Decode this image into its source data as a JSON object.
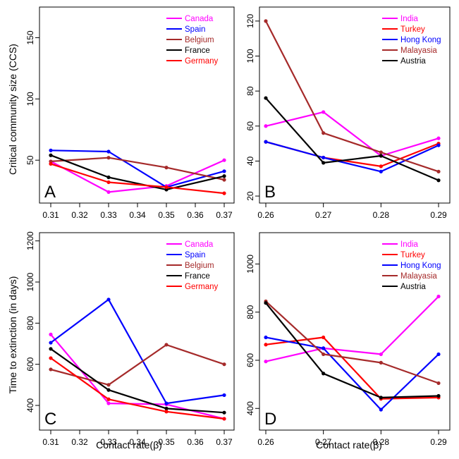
{
  "colors": {
    "magenta": "#ff00ff",
    "blue": "#0000ff",
    "brown": "#a52a2a",
    "black": "#000000",
    "red": "#ff0000"
  },
  "labels": {
    "ylabel_top": "Critical community size (CCS)",
    "ylabel_bottom": "Time to extinction (in days)",
    "xlabel": "Contact rate(β)"
  },
  "chart_data": [
    {
      "id": "A",
      "letter": "A",
      "type": "line",
      "x": [
        0.31,
        0.33,
        0.35,
        0.37
      ],
      "xticks": [
        "0.31",
        "0.32",
        "0.33",
        "0.34",
        "0.35",
        "0.36",
        "0.37"
      ],
      "xlim": [
        0.31,
        0.37
      ],
      "ylim": [
        15,
        175
      ],
      "yticks": [
        50,
        100,
        150
      ],
      "yticklabels": [
        "50",
        "100",
        "150"
      ],
      "legend_position": "top-right",
      "series": [
        {
          "name": "Canada",
          "color": "magenta",
          "values": [
            49,
            24,
            29,
            50
          ]
        },
        {
          "name": "Spain",
          "color": "blue",
          "values": [
            58,
            57,
            28,
            41
          ]
        },
        {
          "name": "Belgium",
          "color": "brown",
          "values": [
            49,
            52,
            44,
            34
          ]
        },
        {
          "name": "France",
          "color": "black",
          "values": [
            54,
            36,
            26,
            37
          ]
        },
        {
          "name": "Germany",
          "color": "red",
          "values": [
            47,
            32,
            28,
            23
          ]
        }
      ]
    },
    {
      "id": "B",
      "letter": "B",
      "type": "line",
      "x": [
        0.26,
        0.27,
        0.28,
        0.29
      ],
      "xticks": [
        "0.26",
        "0.27",
        "0.28",
        "0.29"
      ],
      "xlim": [
        0.26,
        0.29
      ],
      "ylim": [
        16,
        128
      ],
      "yticks": [
        20,
        40,
        60,
        80,
        100,
        120
      ],
      "yticklabels": [
        "20",
        "40",
        "60",
        "80",
        "100",
        "120"
      ],
      "legend_position": "top-right",
      "series": [
        {
          "name": "India",
          "color": "magenta",
          "values": [
            60,
            68,
            43,
            53
          ]
        },
        {
          "name": "Turkey",
          "color": "red",
          "values": [
            51,
            42,
            37,
            50
          ]
        },
        {
          "name": "Hong Kong",
          "color": "blue",
          "values": [
            51,
            42,
            34,
            49
          ]
        },
        {
          "name": "Malayasia",
          "color": "brown",
          "values": [
            120,
            56,
            45,
            34
          ]
        },
        {
          "name": "Austria",
          "color": "black",
          "values": [
            76,
            39,
            43,
            29
          ]
        }
      ]
    },
    {
      "id": "C",
      "letter": "C",
      "type": "line",
      "x": [
        0.31,
        0.33,
        0.35,
        0.37
      ],
      "xticks": [
        "0.31",
        "0.32",
        "0.33",
        "0.34",
        "0.35",
        "0.36",
        "0.37"
      ],
      "xlim": [
        0.31,
        0.37
      ],
      "ylim": [
        280,
        1240
      ],
      "yticks": [
        400,
        600,
        800,
        1000,
        1200
      ],
      "yticklabels": [
        "400",
        "600",
        "800",
        "1000",
        "1200"
      ],
      "legend_position": "top-right",
      "series": [
        {
          "name": "Canada",
          "color": "magenta",
          "values": [
            745,
            410,
            405,
            335
          ]
        },
        {
          "name": "Spain",
          "color": "blue",
          "values": [
            705,
            915,
            410,
            450
          ]
        },
        {
          "name": "Belgium",
          "color": "brown",
          "values": [
            575,
            500,
            695,
            600
          ]
        },
        {
          "name": "France",
          "color": "black",
          "values": [
            675,
            475,
            385,
            365
          ]
        },
        {
          "name": "Germany",
          "color": "red",
          "values": [
            630,
            430,
            370,
            335
          ]
        }
      ]
    },
    {
      "id": "D",
      "letter": "D",
      "type": "line",
      "x": [
        0.26,
        0.27,
        0.28,
        0.29
      ],
      "xticks": [
        "0.26",
        "0.27",
        "0.28",
        "0.29"
      ],
      "xlim": [
        0.26,
        0.29
      ],
      "ylim": [
        310,
        1130
      ],
      "yticks": [
        400,
        600,
        800,
        1000
      ],
      "yticklabels": [
        "400",
        "600",
        "800",
        "1000"
      ],
      "legend_position": "top-right",
      "series": [
        {
          "name": "India",
          "color": "magenta",
          "values": [
            595,
            650,
            625,
            865
          ]
        },
        {
          "name": "Turkey",
          "color": "red",
          "values": [
            665,
            695,
            440,
            445
          ]
        },
        {
          "name": "Hong Kong",
          "color": "blue",
          "values": [
            695,
            650,
            395,
            625
          ]
        },
        {
          "name": "Malayasia",
          "color": "brown",
          "values": [
            845,
            625,
            590,
            505
          ]
        },
        {
          "name": "Austria",
          "color": "black",
          "values": [
            838,
            545,
            445,
            452
          ]
        }
      ]
    }
  ]
}
